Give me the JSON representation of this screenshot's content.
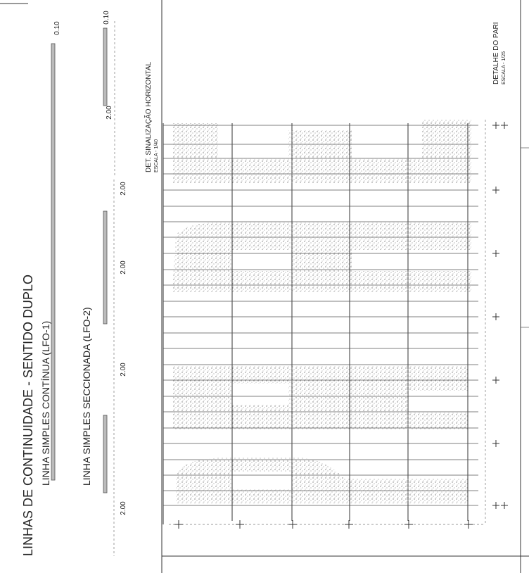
{
  "title": "LINHAS DE CONTINUIDADE - SENTIDO DUPLO",
  "lfo1": {
    "label": "LINHA SIMPLES CONTÍNUA (LFO-1)",
    "width_label": "0.10"
  },
  "lfo2": {
    "label": "LINHA SIMPLES SECCIONADA (LFO-2)",
    "dimensions": [
      "2.00",
      "2.00",
      "2.00",
      "2.00"
    ]
  },
  "detail_horizontal": {
    "title": "DET. SINALIZAÇÃO HORIZONTAL",
    "scale": "ESCALA - 1/40",
    "width_label": "0.10",
    "dimension": "2.00"
  },
  "detail_right": {
    "title": "DETALHE DO PARI",
    "scale": "ESCALA - 1/25"
  }
}
